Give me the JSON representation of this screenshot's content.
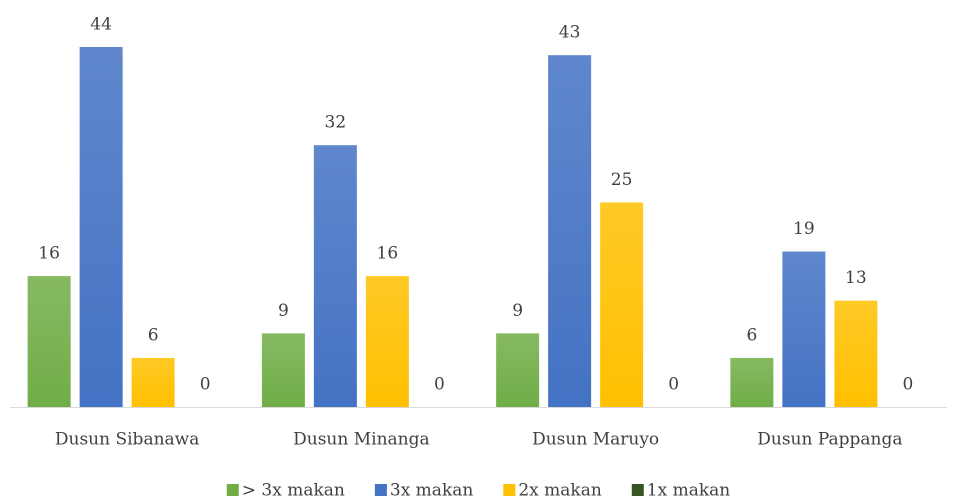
{
  "chart_data": {
    "type": "bar",
    "categories": [
      "Dusun Sibanawa",
      "Dusun Minanga",
      "Dusun Maruyo",
      "Dusun Pappanga"
    ],
    "series": [
      {
        "name": "> 3x makan",
        "color": "#70ad47",
        "values": [
          16,
          9,
          9,
          6
        ]
      },
      {
        "name": "3x makan",
        "color": "#4472c4",
        "values": [
          44,
          32,
          43,
          19
        ]
      },
      {
        "name": "2x makan",
        "color": "#ffc000",
        "values": [
          6,
          16,
          25,
          13
        ]
      },
      {
        "name": "1x makan",
        "color": "#375623",
        "values": [
          0,
          0,
          0,
          0
        ]
      }
    ],
    "legend": "bottom"
  }
}
